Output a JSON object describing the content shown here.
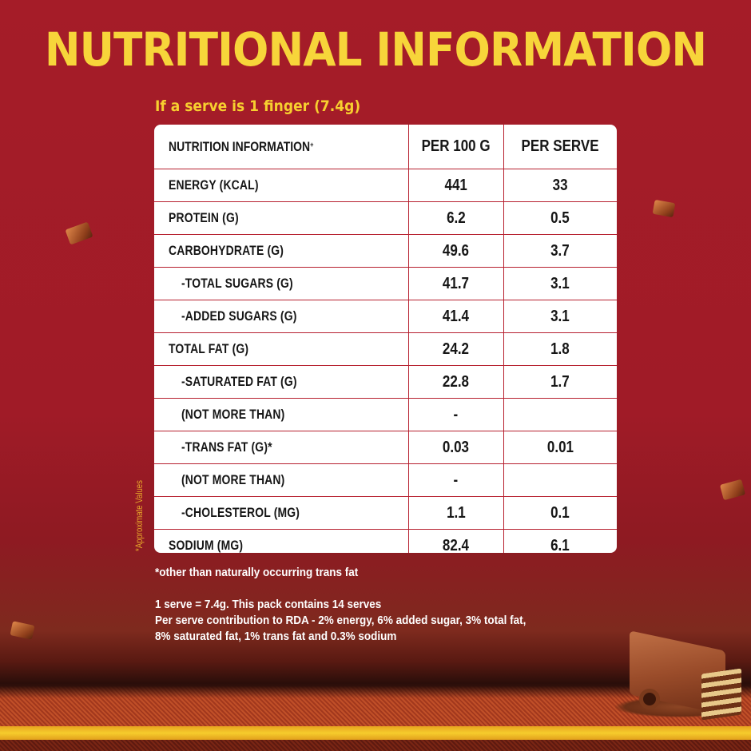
{
  "title": "NUTRITIONAL INFORMATION",
  "subtitle": "If a serve is 1 finger (7.4g)",
  "side_note": "*Approximate Values",
  "table": {
    "headers": {
      "label": "NUTRITION INFORMATION",
      "label_mark": "+",
      "per100": "PER 100 G",
      "perserve": "PER SERVE"
    },
    "rows": [
      {
        "label": "ENERGY (KCAL)",
        "per100": "441",
        "perserve": "33",
        "indent": false
      },
      {
        "label": "PROTEIN (G)",
        "per100": "6.2",
        "perserve": "0.5",
        "indent": false
      },
      {
        "label": "CARBOHYDRATE (G)",
        "per100": "49.6",
        "perserve": "3.7",
        "indent": false
      },
      {
        "label": "-TOTAL SUGARS (G)",
        "per100": "41.7",
        "perserve": "3.1",
        "indent": true
      },
      {
        "label": "-ADDED SUGARS (G)",
        "per100": "41.4",
        "perserve": "3.1",
        "indent": true
      },
      {
        "label": "TOTAL FAT (G)",
        "per100": "24.2",
        "perserve": "1.8",
        "indent": false
      },
      {
        "label": "-SATURATED FAT (G)",
        "per100": "22.8",
        "perserve": "1.7",
        "indent": true
      },
      {
        "label": "(NOT MORE THAN)",
        "per100": "-",
        "perserve": "",
        "indent": true
      },
      {
        "label": "-TRANS FAT (G)*",
        "per100": "0.03",
        "perserve": "0.01",
        "indent": true
      },
      {
        "label": "(NOT MORE THAN)",
        "per100": "-",
        "perserve": "",
        "indent": true
      },
      {
        "label": "-CHOLESTEROL (MG)",
        "per100": "1.1",
        "perserve": "0.1",
        "indent": true
      },
      {
        "label": "SODIUM (MG)",
        "per100": "82.4",
        "perserve": "6.1",
        "indent": false
      }
    ]
  },
  "notes": {
    "footnote": "*other than naturally occurring trans fat",
    "serve_info": "1 serve = 7.4g. This pack contains 14 serves",
    "rda_line1": "Per serve contribution to RDA - 2% energy, 6% added sugar, 3% total fat,",
    "rda_line2": "8% saturated fat, 1% trans fat and 0.3% sodium"
  },
  "colors": {
    "background": "#a51c28",
    "title": "#f7d53a",
    "table_border": "#b72130",
    "stripe": "#f6cc2c"
  },
  "decor": {
    "chocolate_pieces": "chocolate-piece-icon",
    "product_image": "chocolate-wafer-bar"
  }
}
